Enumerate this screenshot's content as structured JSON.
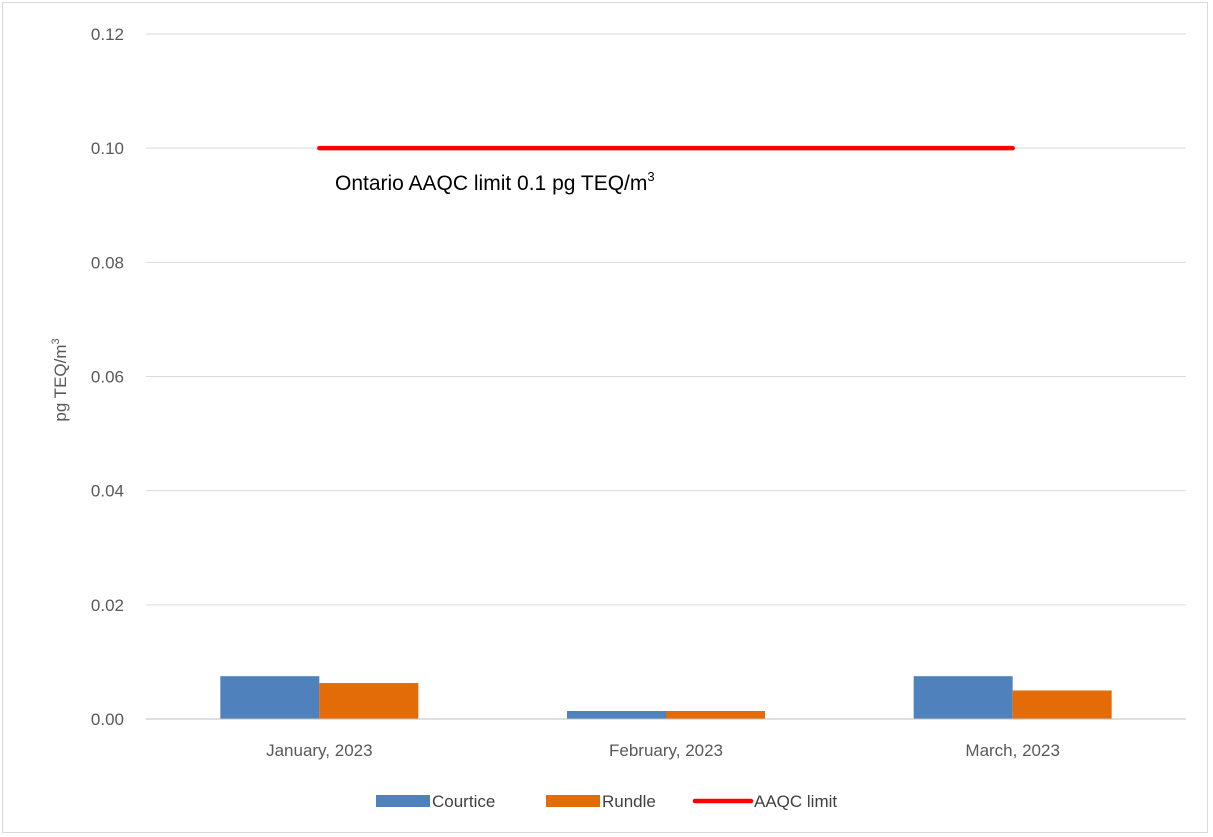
{
  "chart_data": {
    "type": "bar",
    "categories": [
      "January, 2023",
      "February, 2023",
      "March, 2023"
    ],
    "series": [
      {
        "name": "Courtice",
        "kind": "bar",
        "color": "#4f81bd",
        "values": [
          0.0075,
          0.0014,
          0.0075
        ]
      },
      {
        "name": "Rundle",
        "kind": "bar",
        "color": "#e36c09",
        "values": [
          0.0063,
          0.0014,
          0.005
        ]
      },
      {
        "name": "AAQC limit",
        "kind": "line",
        "color": "#ff0000",
        "values": [
          0.1,
          0.1,
          0.1
        ]
      }
    ],
    "ylabel": "pg TEQ/m",
    "ylabel_sup": "3",
    "ylim": [
      0,
      0.12
    ],
    "yticks": [
      "0.00",
      "0.02",
      "0.04",
      "0.06",
      "0.08",
      "0.10",
      "0.12"
    ],
    "grid": true,
    "legend_position": "bottom",
    "annotation": {
      "text": "Ontario AAQC limit 0.1 pg TEQ/m",
      "sup": "3"
    }
  }
}
